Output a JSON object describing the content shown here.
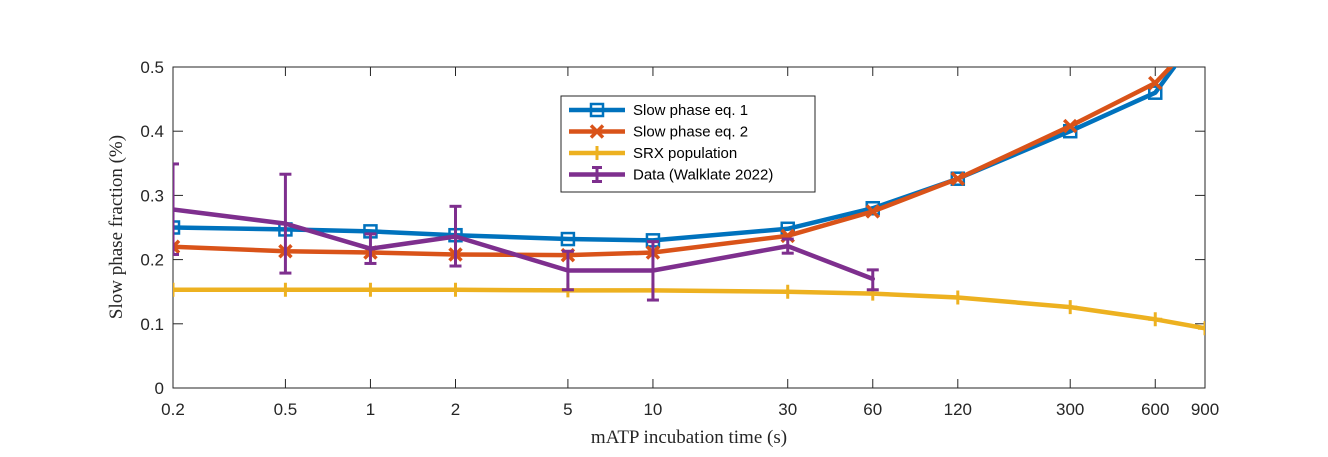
{
  "chart_data": {
    "type": "line",
    "title": "",
    "xlabel": "mATP incubation time (s)",
    "ylabel": "Slow phase fraction (%)",
    "xscale": "log",
    "xlim": [
      0.2,
      900
    ],
    "ylim": [
      0,
      0.5
    ],
    "x_ticks": [
      0.2,
      0.5,
      1,
      2,
      5,
      10,
      30,
      60,
      120,
      300,
      600,
      900
    ],
    "x_tick_labels": [
      "0.2",
      "0.5",
      "1",
      "2",
      "5",
      "10",
      "30",
      "60",
      "120",
      "300",
      "600",
      "900"
    ],
    "y_ticks": [
      0,
      0.1,
      0.2,
      0.3,
      0.4,
      0.5
    ],
    "y_tick_labels": [
      "0",
      "0.1",
      "0.2",
      "0.3",
      "0.4",
      "0.5"
    ],
    "grid": false,
    "legend_position": "top-center",
    "series": [
      {
        "name": "Slow phase eq. 1",
        "color": "#0072BD",
        "marker": "square",
        "x": [
          0.2,
          0.5,
          1,
          2,
          5,
          10,
          30,
          60,
          120,
          300,
          600,
          700
        ],
        "values": [
          0.25,
          0.247,
          0.244,
          0.238,
          0.232,
          0.23,
          0.248,
          0.28,
          0.326,
          0.4,
          0.46,
          0.5
        ],
        "marker_count": 11
      },
      {
        "name": "Slow phase eq. 2",
        "color": "#D95319",
        "marker": "x",
        "x": [
          0.2,
          0.5,
          1,
          2,
          5,
          10,
          30,
          60,
          120,
          300,
          600,
          680
        ],
        "values": [
          0.22,
          0.213,
          0.211,
          0.208,
          0.207,
          0.211,
          0.237,
          0.275,
          0.326,
          0.408,
          0.475,
          0.5
        ],
        "marker_count": 11
      },
      {
        "name": "SRX population",
        "color": "#EDB120",
        "marker": "plus",
        "x": [
          0.2,
          0.5,
          1,
          2,
          5,
          10,
          30,
          60,
          120,
          300,
          600,
          900
        ],
        "values": [
          0.153,
          0.153,
          0.153,
          0.153,
          0.152,
          0.152,
          0.15,
          0.147,
          0.141,
          0.126,
          0.107,
          0.093
        ],
        "marker_count": 12
      },
      {
        "name": "Data (Walklate 2022)",
        "color": "#7E2F8E",
        "marker": "errorbar",
        "x": [
          0.2,
          0.5,
          1,
          2,
          5,
          10,
          30,
          60
        ],
        "values": [
          0.278,
          0.256,
          0.217,
          0.236,
          0.183,
          0.183,
          0.221,
          0.17
        ],
        "err_low": [
          0.07,
          0.077,
          0.023,
          0.046,
          0.03,
          0.046,
          0.011,
          0.017
        ],
        "err_high": [
          0.071,
          0.077,
          0.023,
          0.047,
          0.03,
          0.045,
          0.011,
          0.014
        ]
      }
    ]
  }
}
